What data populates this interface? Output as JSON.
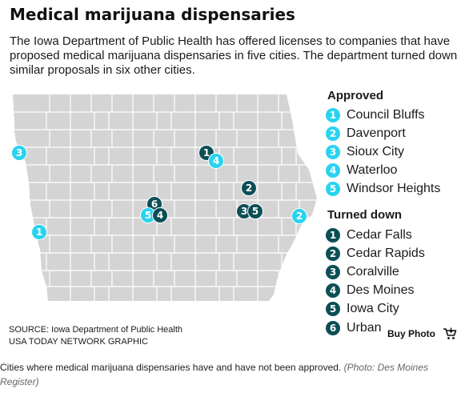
{
  "title": "Medical marijuana dispensaries",
  "subtitle": "The Iowa Department of Public Health has offered licenses to companies that have proposed medical marijuana dispensaries in five cities. The department turned down similar proposals in six other cities.",
  "colors": {
    "approved": "#29d3f0",
    "turned_down": "#0c4f55",
    "map_fill": "#d4d4d4",
    "county_border": "#ffffff"
  },
  "legend": {
    "approved_heading": "Approved",
    "approved": [
      {
        "num": "1",
        "label": "Council Bluffs"
      },
      {
        "num": "2",
        "label": "Davenport"
      },
      {
        "num": "3",
        "label": "Sioux City"
      },
      {
        "num": "4",
        "label": "Waterloo"
      },
      {
        "num": "5",
        "label": "Windsor Heights"
      }
    ],
    "turned_down_heading": "Turned down",
    "turned_down": [
      {
        "num": "1",
        "label": "Cedar Falls"
      },
      {
        "num": "2",
        "label": "Cedar Rapids"
      },
      {
        "num": "3",
        "label": "Coralville"
      },
      {
        "num": "4",
        "label": "Des Moines"
      },
      {
        "num": "5",
        "label": "Iowa City"
      },
      {
        "num": "6",
        "label": "Urbandale"
      }
    ]
  },
  "map_markers": [
    {
      "num": "3",
      "status": "approved",
      "city": "Sioux City"
    },
    {
      "num": "1",
      "status": "turned_down",
      "city": "Cedar Falls"
    },
    {
      "num": "4",
      "status": "approved",
      "city": "Waterloo"
    },
    {
      "num": "2",
      "status": "turned_down",
      "city": "Cedar Rapids"
    },
    {
      "num": "3",
      "status": "turned_down",
      "city": "Coralville"
    },
    {
      "num": "5",
      "status": "turned_down",
      "city": "Iowa City"
    },
    {
      "num": "2",
      "status": "approved",
      "city": "Davenport"
    },
    {
      "num": "6",
      "status": "turned_down",
      "city": "Urbandale"
    },
    {
      "num": "5",
      "status": "approved",
      "city": "Windsor Heights"
    },
    {
      "num": "4",
      "status": "turned_down",
      "city": "Des Moines"
    },
    {
      "num": "1",
      "status": "approved",
      "city": "Council Bluffs"
    }
  ],
  "source_line": "SOURCE: Iowa Department of Public Health",
  "credit_line": "USA TODAY NETWORK GRAPHIC",
  "buy_photo_label": "Buy Photo",
  "caption_text": "Cities where medical marijuana dispensaries have and have not been approved.",
  "caption_credit": "(Photo: Des Moines Register)"
}
